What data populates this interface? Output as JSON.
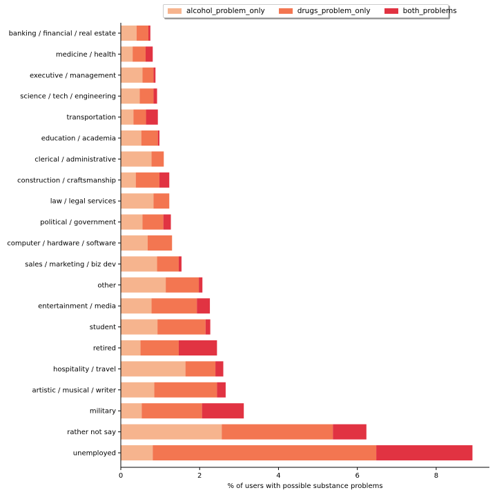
{
  "chart_data": {
    "type": "bar",
    "orientation": "horizontal",
    "stacked": true,
    "xlabel": "% of users with possible substance problems",
    "xlim": [
      0,
      9.35
    ],
    "xticks": [
      0,
      2,
      4,
      6,
      8
    ],
    "grid": false,
    "legend_position": "top-center",
    "categories": [
      "banking / financial / real estate",
      "medicine / health",
      "executive / management",
      "science / tech / engineering",
      "transportation",
      "education / academia",
      "clerical / administrative",
      "construction / craftsmanship",
      "law / legal services",
      "political / government",
      "computer / hardware / software",
      "sales / marketing / biz dev",
      "other",
      "entertainment / media",
      "student",
      "retired",
      "hospitality / travel",
      "artistic / musical / writer",
      "military",
      "rather not say",
      "unemployed"
    ],
    "series": [
      {
        "name": "alcohol_problem_only",
        "color": "#f6b48e",
        "values": [
          0.4,
          0.3,
          0.55,
          0.48,
          0.32,
          0.52,
          0.78,
          0.38,
          0.83,
          0.55,
          0.68,
          0.92,
          1.14,
          0.78,
          0.93,
          0.5,
          1.64,
          0.85,
          0.53,
          2.56,
          0.81
        ]
      },
      {
        "name": "drugs_problem_only",
        "color": "#f37651",
        "values": [
          0.3,
          0.33,
          0.28,
          0.35,
          0.32,
          0.42,
          0.31,
          0.6,
          0.4,
          0.53,
          0.62,
          0.55,
          0.84,
          1.15,
          1.22,
          0.97,
          0.76,
          1.59,
          1.53,
          2.82,
          5.67
        ]
      },
      {
        "name": "both_problems",
        "color": "#e13342",
        "values": [
          0.05,
          0.18,
          0.05,
          0.09,
          0.3,
          0.04,
          0.0,
          0.25,
          0.0,
          0.19,
          0.0,
          0.07,
          0.09,
          0.33,
          0.12,
          0.97,
          0.2,
          0.22,
          1.06,
          0.85,
          2.44
        ]
      }
    ]
  }
}
